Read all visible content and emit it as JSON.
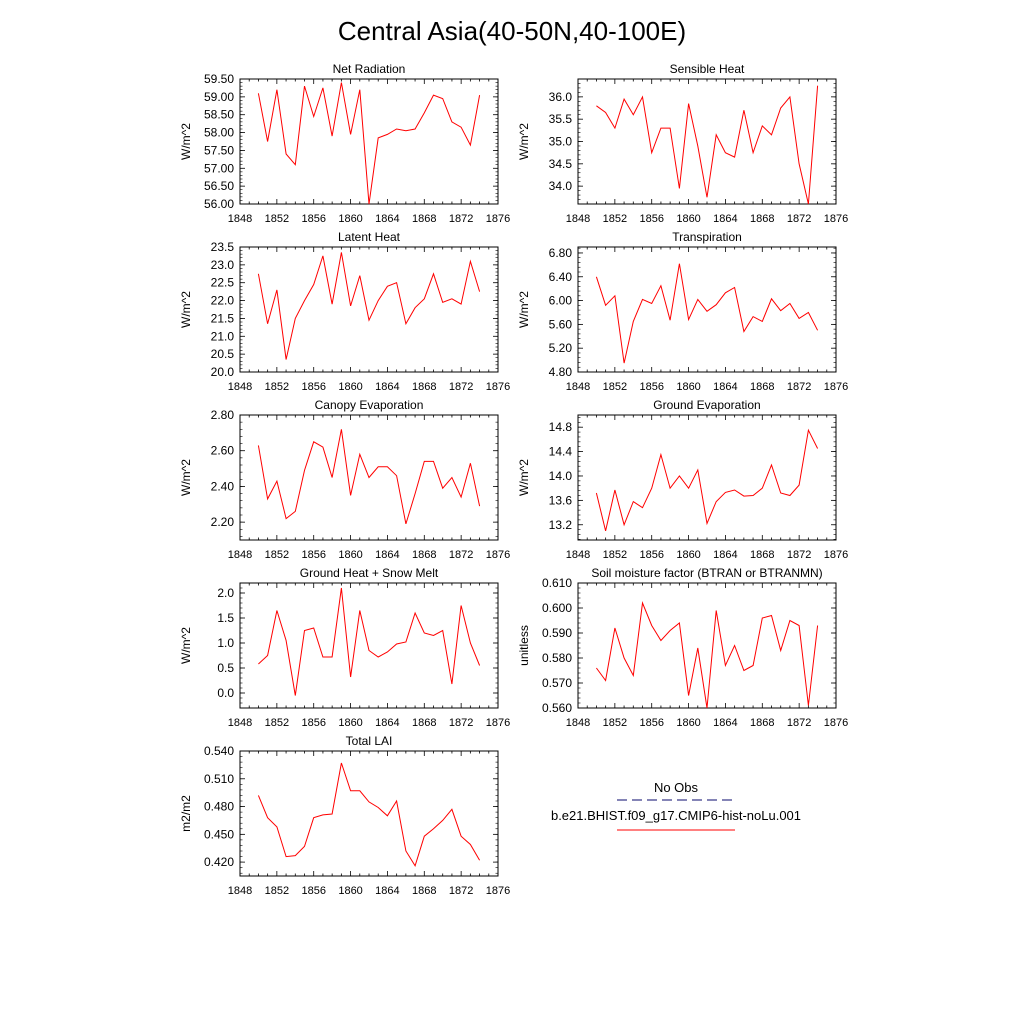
{
  "title": "Central Asia(40-50N,40-100E)",
  "colors": {
    "series": "#ff0000",
    "obs": "#3a3a8a",
    "axis": "#000000"
  },
  "legend": {
    "obs_label": "No Obs",
    "model_label": "b.e21.BHIST.f09_g17.CMIP6-hist-noLu.001"
  },
  "x_axis": {
    "ticks": [
      1848,
      1852,
      1856,
      1860,
      1864,
      1868,
      1872,
      1876
    ],
    "range": [
      1848,
      1876
    ]
  },
  "chart_data": [
    {
      "type": "line",
      "title": "Net Radiation",
      "ylabel": "W/m^2",
      "ylim": [
        56.0,
        59.5
      ],
      "yticks": [
        "56.00",
        "56.50",
        "57.00",
        "57.50",
        "58.00",
        "58.50",
        "59.00",
        "59.50"
      ],
      "x": [
        1850,
        1851,
        1852,
        1853,
        1854,
        1855,
        1856,
        1857,
        1858,
        1859,
        1860,
        1861,
        1862,
        1863,
        1864,
        1865,
        1866,
        1867,
        1868,
        1869,
        1870,
        1871,
        1872,
        1873,
        1874
      ],
      "series": [
        {
          "values": [
            59.1,
            57.75,
            59.2,
            57.4,
            57.1,
            59.3,
            58.45,
            59.25,
            57.9,
            59.4,
            57.95,
            59.2,
            56.0,
            57.85,
            57.95,
            58.1,
            58.05,
            58.1,
            58.55,
            59.05,
            58.95,
            58.3,
            58.15,
            57.65,
            59.05
          ]
        }
      ]
    },
    {
      "type": "line",
      "title": "Sensible Heat",
      "ylabel": "W/m^2",
      "ylim": [
        33.6,
        36.4
      ],
      "yticks": [
        "34.0",
        "34.5",
        "35.0",
        "35.5",
        "36.0"
      ],
      "x": [
        1850,
        1851,
        1852,
        1853,
        1854,
        1855,
        1856,
        1857,
        1858,
        1859,
        1860,
        1861,
        1862,
        1863,
        1864,
        1865,
        1866,
        1867,
        1868,
        1869,
        1870,
        1871,
        1872,
        1873,
        1874
      ],
      "series": [
        {
          "values": [
            35.8,
            35.65,
            35.3,
            35.95,
            35.6,
            36.0,
            34.75,
            35.3,
            35.3,
            33.95,
            35.85,
            34.9,
            33.75,
            35.15,
            34.75,
            34.65,
            35.7,
            34.75,
            35.35,
            35.15,
            35.75,
            36.0,
            34.5,
            33.6,
            36.25
          ]
        }
      ]
    },
    {
      "type": "line",
      "title": "Latent Heat",
      "ylabel": "W/m^2",
      "ylim": [
        20.0,
        23.5
      ],
      "yticks": [
        "20.0",
        "20.5",
        "21.0",
        "21.5",
        "22.0",
        "22.5",
        "23.0",
        "23.5"
      ],
      "x": [
        1850,
        1851,
        1852,
        1853,
        1854,
        1855,
        1856,
        1857,
        1858,
        1859,
        1860,
        1861,
        1862,
        1863,
        1864,
        1865,
        1866,
        1867,
        1868,
        1869,
        1870,
        1871,
        1872,
        1873,
        1874
      ],
      "series": [
        {
          "values": [
            22.75,
            21.35,
            22.3,
            20.35,
            21.5,
            22.0,
            22.45,
            23.25,
            21.9,
            23.35,
            21.85,
            22.7,
            21.45,
            22.0,
            22.4,
            22.5,
            21.35,
            21.8,
            22.05,
            22.75,
            21.95,
            22.05,
            21.9,
            23.1,
            22.25
          ]
        }
      ]
    },
    {
      "type": "line",
      "title": "Transpiration",
      "ylabel": "W/m^2",
      "ylim": [
        4.8,
        6.9
      ],
      "yticks": [
        "4.80",
        "5.20",
        "5.60",
        "6.00",
        "6.40",
        "6.80"
      ],
      "x": [
        1850,
        1851,
        1852,
        1853,
        1854,
        1855,
        1856,
        1857,
        1858,
        1859,
        1860,
        1861,
        1862,
        1863,
        1864,
        1865,
        1866,
        1867,
        1868,
        1869,
        1870,
        1871,
        1872,
        1873,
        1874
      ],
      "series": [
        {
          "values": [
            6.4,
            5.92,
            6.08,
            4.95,
            5.65,
            6.02,
            5.95,
            6.25,
            5.67,
            6.62,
            5.68,
            6.02,
            5.82,
            5.93,
            6.13,
            6.22,
            5.48,
            5.73,
            5.65,
            6.03,
            5.83,
            5.95,
            5.7,
            5.8,
            5.5
          ]
        }
      ]
    },
    {
      "type": "line",
      "title": "Canopy Evaporation",
      "ylabel": "W/m^2",
      "ylim": [
        2.1,
        2.8
      ],
      "yticks": [
        "2.20",
        "2.40",
        "2.60",
        "2.80"
      ],
      "x": [
        1850,
        1851,
        1852,
        1853,
        1854,
        1855,
        1856,
        1857,
        1858,
        1859,
        1860,
        1861,
        1862,
        1863,
        1864,
        1865,
        1866,
        1867,
        1868,
        1869,
        1870,
        1871,
        1872,
        1873,
        1874
      ],
      "series": [
        {
          "values": [
            2.63,
            2.33,
            2.43,
            2.22,
            2.26,
            2.49,
            2.65,
            2.62,
            2.45,
            2.72,
            2.35,
            2.58,
            2.45,
            2.51,
            2.51,
            2.46,
            2.19,
            2.36,
            2.54,
            2.54,
            2.39,
            2.45,
            2.34,
            2.53,
            2.29
          ]
        }
      ]
    },
    {
      "type": "line",
      "title": "Ground Evaporation",
      "ylabel": "W/m^2",
      "ylim": [
        12.95,
        15.0
      ],
      "yticks": [
        "13.2",
        "13.6",
        "14.0",
        "14.4",
        "14.8"
      ],
      "x": [
        1850,
        1851,
        1852,
        1853,
        1854,
        1855,
        1856,
        1857,
        1858,
        1859,
        1860,
        1861,
        1862,
        1863,
        1864,
        1865,
        1866,
        1867,
        1868,
        1869,
        1870,
        1871,
        1872,
        1873,
        1874
      ],
      "series": [
        {
          "values": [
            13.72,
            13.1,
            13.77,
            13.2,
            13.58,
            13.48,
            13.8,
            14.35,
            13.8,
            14.0,
            13.8,
            14.1,
            13.22,
            13.58,
            13.73,
            13.77,
            13.67,
            13.68,
            13.8,
            14.18,
            13.72,
            13.68,
            13.85,
            14.75,
            14.45
          ]
        }
      ]
    },
    {
      "type": "line",
      "title": "Ground Heat + Snow Melt",
      "ylabel": "W/m^2",
      "ylim": [
        -0.3,
        2.2
      ],
      "yticks": [
        "0.0",
        "0.5",
        "1.0",
        "1.5",
        "2.0"
      ],
      "x": [
        1850,
        1851,
        1852,
        1853,
        1854,
        1855,
        1856,
        1857,
        1858,
        1859,
        1860,
        1861,
        1862,
        1863,
        1864,
        1865,
        1866,
        1867,
        1868,
        1869,
        1870,
        1871,
        1872,
        1873,
        1874
      ],
      "series": [
        {
          "values": [
            0.58,
            0.75,
            1.65,
            1.05,
            -0.05,
            1.25,
            1.3,
            0.72,
            0.72,
            2.1,
            0.32,
            1.65,
            0.85,
            0.72,
            0.82,
            0.98,
            1.02,
            1.6,
            1.2,
            1.15,
            1.25,
            0.18,
            1.75,
            1.0,
            0.55
          ]
        }
      ]
    },
    {
      "type": "line",
      "title": "Soil moisture factor (BTRAN or BTRANMN)",
      "ylabel": "unitless",
      "ylim": [
        0.56,
        0.61
      ],
      "yticks": [
        "0.560",
        "0.570",
        "0.580",
        "0.590",
        "0.600",
        "0.610"
      ],
      "x": [
        1850,
        1851,
        1852,
        1853,
        1854,
        1855,
        1856,
        1857,
        1858,
        1859,
        1860,
        1861,
        1862,
        1863,
        1864,
        1865,
        1866,
        1867,
        1868,
        1869,
        1870,
        1871,
        1872,
        1873,
        1874
      ],
      "series": [
        {
          "values": [
            0.576,
            0.571,
            0.592,
            0.58,
            0.573,
            0.602,
            0.593,
            0.587,
            0.591,
            0.594,
            0.565,
            0.584,
            0.56,
            0.599,
            0.577,
            0.585,
            0.575,
            0.577,
            0.596,
            0.597,
            0.583,
            0.595,
            0.593,
            0.561,
            0.593
          ]
        }
      ]
    },
    {
      "type": "line",
      "title": "Total LAI",
      "ylabel": "m2/m2",
      "ylim": [
        0.405,
        0.54
      ],
      "yticks": [
        "0.420",
        "0.450",
        "0.480",
        "0.510",
        "0.540"
      ],
      "x": [
        1850,
        1851,
        1852,
        1853,
        1854,
        1855,
        1856,
        1857,
        1858,
        1859,
        1860,
        1861,
        1862,
        1863,
        1864,
        1865,
        1866,
        1867,
        1868,
        1869,
        1870,
        1871,
        1872,
        1873,
        1874
      ],
      "series": [
        {
          "values": [
            0.492,
            0.468,
            0.458,
            0.426,
            0.427,
            0.437,
            0.468,
            0.471,
            0.472,
            0.527,
            0.497,
            0.497,
            0.485,
            0.479,
            0.47,
            0.486,
            0.432,
            0.416,
            0.448,
            0.456,
            0.465,
            0.477,
            0.448,
            0.439,
            0.422
          ]
        }
      ]
    }
  ]
}
